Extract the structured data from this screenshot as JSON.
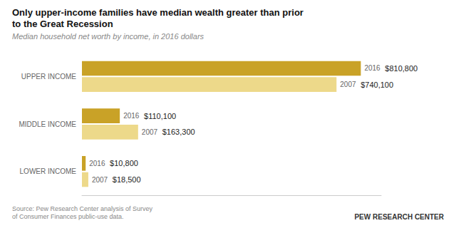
{
  "chart_data": {
    "type": "bar",
    "orientation": "horizontal",
    "title": "Only upper-income families have median wealth greater than prior\nto the Great Recession",
    "subtitle": "Median household net worth by income, in 2016 dollars",
    "categories": [
      "UPPER INCOME",
      "MIDDLE INCOME",
      "LOWER INCOME"
    ],
    "series": [
      {
        "name": "2016",
        "color": "#C9A227",
        "values": [
          810800,
          110100,
          10800
        ],
        "value_labels": [
          "$810,800",
          "$110,100",
          "$10,800"
        ]
      },
      {
        "name": "2007",
        "color": "#EDD98A",
        "values": [
          740100,
          163300,
          18500
        ],
        "value_labels": [
          "$740,100",
          "$163,300",
          "$18,500"
        ]
      }
    ],
    "xlim": [
      0,
      870000
    ],
    "data_labels": true,
    "tick_labels": "y",
    "grid": false,
    "annotations": [
      "Source: Pew Research Center analysis of Survey\nof Consumer Finances public-use data.",
      "PEW RESEARCH CENTER"
    ]
  }
}
